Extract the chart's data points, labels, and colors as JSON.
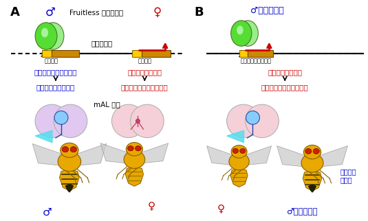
{
  "bg_color": "#ffffff",
  "panel_A_label": "A",
  "panel_B_label": "B",
  "male_symbol": "♂",
  "female_symbol": "♀",
  "fruitless_label": "Fruitless タンパク質",
  "robo_gene_label": "ロボ遅伝子",
  "palindrome_label": "回文構造",
  "palindrome_label2": "回文構造",
  "no_palindrome_label": "回文構造を持たない",
  "robo_not_work": "ロボ遅伝子が働かない",
  "robo_works_A": "ロボ遅伝子が働く",
  "robo_works_B": "ロボ遅伝子が働く",
  "male_spike": "雄特異的突起を作る",
  "no_male_spike_A": "雄特異的突起が出来ない",
  "no_male_spike_B": "雄特異的突起が出来ない",
  "mal_cell_label": "mAL 細胞",
  "mutant_label": "ロボ変異体",
  "courtship_abnormal": "求愛動作\nの異常",
  "arrow_color": "#cc0000",
  "blue_color": "#0000cc",
  "red_color": "#cc0000",
  "gene_box_color": "#cc8800",
  "yellow_box_color": "#ffcc00",
  "green_color1": "#55dd44",
  "green_color2": "#88ee66",
  "dna_color": "#111111",
  "brain_color_blue": "#e8d0f0",
  "brain_color_pink": "#f8d0d8",
  "spike_blue": "#55ddee",
  "fly_body": "#e8a800",
  "fly_edge": "#886000",
  "fly_stripe": "#997700",
  "fly_wing": "#cccccc",
  "fly_eye": "#cc2200"
}
